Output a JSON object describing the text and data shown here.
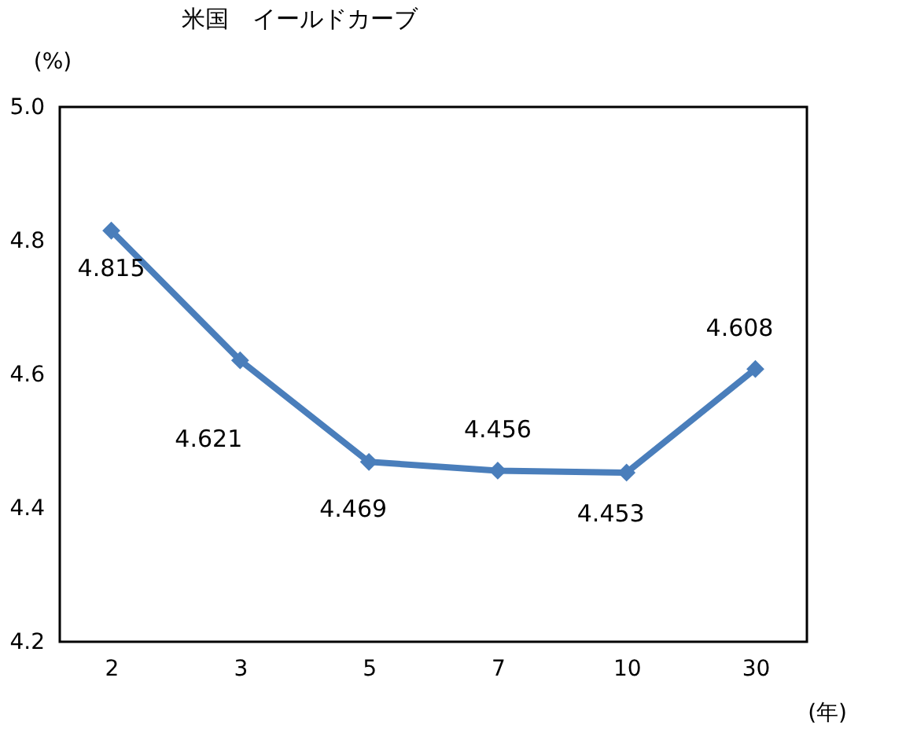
{
  "chart_data": {
    "type": "line",
    "title": "米国　イールドカーブ",
    "ylabel": "(%)",
    "xlabel": "(年)",
    "categories": [
      "2",
      "3",
      "5",
      "7",
      "10",
      "30"
    ],
    "series": [
      {
        "color": "#4a7ebb",
        "values": [
          4.815,
          4.621,
          4.469,
          4.456,
          4.453,
          4.608
        ]
      }
    ],
    "ylim": [
      4.2,
      5.0
    ],
    "yticks": [
      4.2,
      4.4,
      4.6,
      4.8,
      {
        "value": 5.0,
        "label": "5.0"
      }
    ],
    "data_labels": true,
    "marker": "diamond",
    "line_style": "solid",
    "grid": false
  }
}
